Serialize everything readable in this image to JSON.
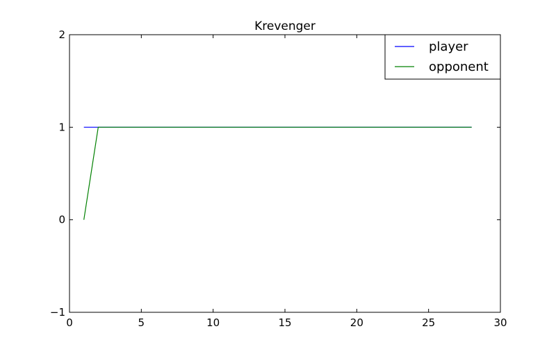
{
  "chart_data": {
    "type": "line",
    "title": "Krevenger",
    "xlabel": "",
    "ylabel": "",
    "xlim": [
      0,
      30
    ],
    "ylim": [
      -1,
      2
    ],
    "x_ticks": [
      0,
      5,
      10,
      15,
      20,
      25,
      30
    ],
    "y_ticks": [
      -1,
      0,
      1,
      2
    ],
    "x_tick_labels": [
      "0",
      "5",
      "10",
      "15",
      "20",
      "25",
      "30"
    ],
    "y_tick_labels": [
      "−1",
      "0",
      "1",
      "2"
    ],
    "grid": false,
    "legend_position": "top-right",
    "series": [
      {
        "name": "player",
        "color": "#0000ff",
        "x": [
          1,
          28
        ],
        "y": [
          1,
          1
        ]
      },
      {
        "name": "opponent",
        "color": "#008000",
        "x": [
          1,
          2,
          28
        ],
        "y": [
          0,
          1,
          1
        ]
      }
    ]
  }
}
